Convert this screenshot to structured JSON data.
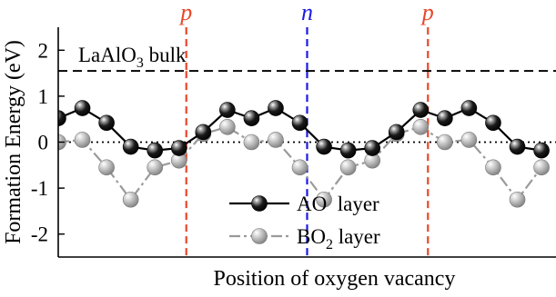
{
  "chart_data": {
    "type": "line",
    "title": "",
    "xlabel": "Position of oxygen vacancy",
    "ylabel": "Formation Energy (eV)",
    "ylim": [
      -2.5,
      2.5
    ],
    "yticks": [
      -2,
      -1,
      0,
      1,
      2
    ],
    "grid": false,
    "legend_position": "bottom-center",
    "annotation": {
      "base": "LaAlO",
      "sub": "3",
      "rest": " bulk",
      "value": 1.55
    },
    "zero_line": 0,
    "region_labels": [
      {
        "text": "p",
        "x": 5.3,
        "color": "#e8472a"
      },
      {
        "text": "n",
        "x": 10.3,
        "color": "#1a1ae6"
      },
      {
        "text": "p",
        "x": 15.3,
        "color": "#e8472a"
      }
    ],
    "xlim": [
      0,
      20.6
    ],
    "series": [
      {
        "name": {
          "base": "AO  layer",
          "sub": "",
          "rest": ""
        },
        "color": "#000000",
        "style": "solid",
        "x": [
          0,
          1,
          2,
          3,
          4,
          5,
          6,
          7,
          8,
          9,
          10,
          11,
          12,
          13,
          14,
          15,
          16,
          17,
          18,
          19,
          20
        ],
        "y": [
          0.52,
          0.74,
          0.42,
          -0.1,
          -0.18,
          -0.13,
          0.22,
          0.7,
          0.52,
          0.74,
          0.42,
          -0.1,
          -0.18,
          -0.13,
          0.22,
          0.7,
          0.52,
          0.74,
          0.42,
          -0.1,
          -0.18
        ]
      },
      {
        "name": {
          "base": "BO",
          "sub": "2",
          "rest": " layer"
        },
        "color": "#9a9a9a",
        "style": "dashdot",
        "x": [
          0,
          1,
          2,
          3,
          4,
          5,
          6,
          7,
          8,
          9,
          10,
          11,
          12,
          13,
          14,
          15,
          16,
          17,
          18,
          19,
          20
        ],
        "y": [
          0.0,
          0.05,
          -0.55,
          -1.25,
          -0.55,
          -0.4,
          0.18,
          0.33,
          0.0,
          0.05,
          -0.55,
          -1.25,
          -0.55,
          -0.4,
          0.18,
          0.33,
          0.0,
          0.05,
          -0.55,
          -1.25,
          -0.55
        ]
      }
    ]
  }
}
